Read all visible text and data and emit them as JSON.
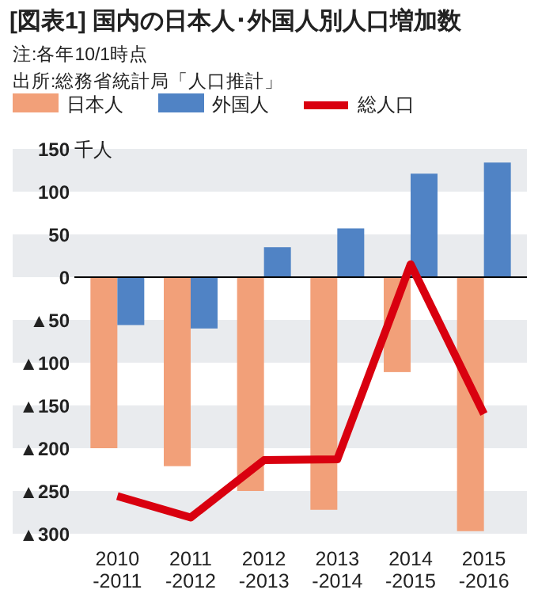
{
  "chart_data": {
    "type": "bar",
    "title": "[図表1] 国内の日本人･外国人別人口増加数",
    "annotations": [
      "注:各年10/1時点",
      "出所:総務省統計局「人口推計」"
    ],
    "ylabel": "千人",
    "categories": [
      "2010\n-2011",
      "2011\n-2012",
      "2012\n-2013",
      "2013\n-2014",
      "2014\n-2015",
      "2015\n-2016"
    ],
    "series": [
      {
        "name": "日本人",
        "color": "#f2a079",
        "values": [
          -200,
          -221,
          -250,
          -272,
          -111,
          -297
        ]
      },
      {
        "name": "外国人",
        "color": "#5083c5",
        "values": [
          -56,
          -60,
          35,
          57,
          121,
          134
        ]
      },
      {
        "name": "総人口",
        "type": "line",
        "color": "#d9000f",
        "values": [
          -256,
          -281,
          -214,
          -213,
          15,
          -160
        ]
      }
    ],
    "ylim": [
      -300,
      150
    ],
    "yticks": [
      150,
      100,
      50,
      0,
      {
        "value": -50,
        "label": "▲50"
      },
      {
        "value": -100,
        "label": "▲100"
      },
      {
        "value": -150,
        "label": "▲150"
      },
      {
        "value": -200,
        "label": "▲200"
      },
      {
        "value": -250,
        "label": "▲250"
      },
      {
        "value": -300,
        "label": "▲300"
      }
    ],
    "grid": "y",
    "legend": "top left"
  }
}
